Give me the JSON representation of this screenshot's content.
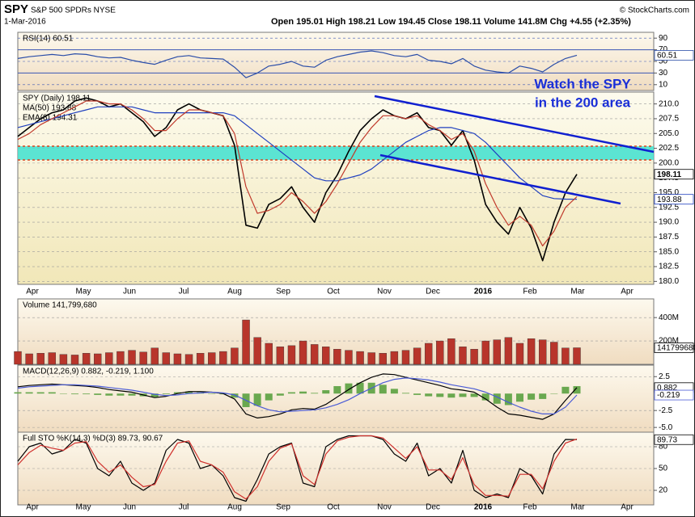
{
  "header": {
    "symbol": "SPY",
    "name": "S&P 500 SPDRs NYSE",
    "date": "1-Mar-2016",
    "quote": "Open 195.01 High 198.21 Low 194.45 Close 198.11 Volume 141.8M Chg +4.55 (+2.35%)",
    "credit": "© StockCharts.com"
  },
  "months": [
    "Apr",
    "May",
    "Jun",
    "Jul",
    "Aug",
    "Sep",
    "Oct",
    "Nov",
    "Dec",
    "2016",
    "Feb",
    "Mar",
    "Apr"
  ],
  "annotation": [
    "Watch the SPY",
    "in the 200 area"
  ],
  "chart_data": [
    {
      "type": "line",
      "title": "RSI(14) 60.51",
      "color": "#2a4da8",
      "ylim": [
        0,
        100
      ],
      "yticks": [
        10,
        30,
        50,
        70,
        90
      ],
      "grid": true,
      "values": [
        55,
        58,
        60,
        62,
        60,
        63,
        62,
        58,
        56,
        57,
        52,
        48,
        45,
        52,
        58,
        60,
        56,
        55,
        54,
        40,
        22,
        30,
        42,
        45,
        50,
        42,
        40,
        52,
        58,
        62,
        66,
        68,
        65,
        60,
        58,
        62,
        52,
        50,
        46,
        55,
        42,
        35,
        32,
        30,
        42,
        38,
        32,
        45,
        55,
        60.51
      ]
    },
    {
      "type": "line",
      "ylim": [
        179.5,
        212
      ],
      "grid": true,
      "yticks": [
        {
          "value": 180,
          "label": "180.0"
        },
        182.5,
        {
          "value": 185,
          "label": "185.0"
        },
        187.5,
        {
          "value": 190,
          "label": "190.0"
        },
        192.5,
        {
          "value": 195,
          "label": "195.0"
        },
        197.5,
        {
          "value": 200,
          "label": "200.0"
        },
        202.5,
        {
          "value": 205,
          "label": "205.0"
        },
        207.5,
        {
          "value": 210,
          "label": "210.0"
        }
      ],
      "series": [
        {
          "name": "SPY (Daily) 198.11",
          "color": "#000000",
          "values": [
            204.5,
            206,
            207.5,
            208.5,
            209,
            210.5,
            211,
            210.5,
            209.5,
            210,
            208.5,
            207,
            204.5,
            206,
            209,
            210,
            209,
            208.5,
            208,
            203,
            189.5,
            189,
            193,
            194,
            196,
            192.5,
            190,
            195,
            198,
            202,
            205.5,
            207.5,
            209,
            208,
            207.5,
            208.5,
            206,
            205.5,
            203,
            205.5,
            200.5,
            193,
            190,
            188,
            192.5,
            189,
            183.5,
            190,
            195,
            198.11
          ]
        },
        {
          "name": "MA(50) 193.88",
          "color": "#1f3fbf",
          "values": [
            206,
            206.5,
            207,
            207.5,
            208,
            208.5,
            209,
            209.5,
            209.5,
            209.5,
            209.5,
            209,
            208.5,
            208.5,
            208.5,
            208.5,
            208.5,
            208.5,
            208.5,
            208,
            206.5,
            205,
            203.5,
            202,
            200.5,
            199,
            197.5,
            197,
            197,
            197.5,
            198,
            199,
            200.5,
            202,
            203.5,
            204.5,
            205.5,
            206,
            206,
            205.5,
            205,
            203.5,
            201.5,
            199.5,
            197.5,
            196,
            194.5,
            194,
            193.9,
            193.88
          ]
        },
        {
          "name": "EMA(8) 194.31",
          "color": "#c0392b",
          "values": [
            204,
            205,
            206.5,
            207.5,
            208.5,
            209.5,
            210.5,
            210.5,
            210,
            210,
            209,
            207.5,
            205.5,
            205.5,
            207.5,
            209,
            209,
            208.5,
            208,
            205,
            196,
            191.5,
            192,
            193,
            195,
            193.5,
            191.5,
            193.5,
            196.5,
            200,
            203.5,
            206,
            208,
            208,
            207.5,
            208,
            206.5,
            205.5,
            204,
            205,
            202,
            196.5,
            192.5,
            189.5,
            191,
            189.5,
            186,
            188.5,
            192.5,
            194.31
          ]
        }
      ]
    },
    {
      "type": "bar",
      "title": "Volume 141,799,680",
      "color": "#b8352b",
      "ylim": [
        0,
        560000000
      ],
      "grid": true,
      "yticks": [
        {
          "value": 200000000,
          "label": "200M"
        },
        {
          "value": 400000000,
          "label": "400M"
        }
      ],
      "values": [
        110000000,
        90000000,
        95000000,
        100000000,
        85000000,
        80000000,
        95000000,
        90000000,
        100000000,
        110000000,
        120000000,
        105000000,
        140000000,
        100000000,
        90000000,
        85000000,
        95000000,
        100000000,
        110000000,
        140000000,
        380000000,
        230000000,
        180000000,
        150000000,
        160000000,
        200000000,
        170000000,
        150000000,
        130000000,
        120000000,
        110000000,
        100000000,
        95000000,
        110000000,
        120000000,
        140000000,
        180000000,
        200000000,
        220000000,
        150000000,
        130000000,
        200000000,
        210000000,
        230000000,
        180000000,
        220000000,
        210000000,
        190000000,
        140000000,
        141799680
      ]
    },
    {
      "type": "line",
      "title": "MACD(12,26,9) 0.882, -0.219, 1.100",
      "ylim": [
        -5.7,
        4.2
      ],
      "grid": true,
      "yticks": [
        2.5,
        -2.5,
        {
          "value": -5,
          "label": "-5.0"
        }
      ],
      "series": [
        {
          "type": "bar",
          "color": "#6aa84f",
          "values": [
            0.2,
            0.2,
            0.2,
            0.2,
            0,
            -0.1,
            -0.1,
            -0.2,
            -0.3,
            -0.3,
            -0.3,
            -0.4,
            -0.5,
            -0.1,
            0.2,
            0.3,
            0.2,
            0,
            -0.1,
            -0.6,
            -2,
            -1.8,
            -1,
            -0.3,
            0.2,
            0.3,
            0.1,
            0.5,
            1.1,
            1.5,
            1.6,
            1.6,
            1.3,
            0.7,
            0.1,
            -0.2,
            -0.4,
            -0.5,
            -0.6,
            -0.5,
            -0.5,
            -1,
            -1.5,
            -1.7,
            -1.2,
            -0.9,
            -0.8,
            0,
            1,
            1.1
          ]
        },
        {
          "color": "#000000",
          "values": [
            1,
            1.2,
            1.3,
            1.4,
            1.3,
            1.2,
            1.1,
            0.9,
            0.6,
            0.4,
            0.2,
            -0.2,
            -0.6,
            -0.4,
            0,
            0.3,
            0.3,
            0.2,
            0,
            -0.8,
            -3,
            -3.6,
            -3.4,
            -3,
            -2.4,
            -2.2,
            -2.3,
            -1.6,
            -0.5,
            0.6,
            1.6,
            2.4,
            2.9,
            2.8,
            2.4,
            2,
            1.6,
            1.2,
            0.7,
            0.5,
            0.2,
            -0.8,
            -2,
            -3,
            -3.2,
            -3.5,
            -3.8,
            -3,
            -1,
            0.882
          ]
        },
        {
          "color": "#4a5bd6",
          "values": [
            0.8,
            1,
            1.1,
            1.2,
            1.3,
            1.3,
            1.2,
            1.1,
            0.9,
            0.7,
            0.5,
            0.2,
            -0.1,
            -0.3,
            -0.2,
            0,
            0.1,
            0.2,
            0.1,
            -0.2,
            -1,
            -1.8,
            -2.4,
            -2.7,
            -2.6,
            -2.5,
            -2.4,
            -2.1,
            -1.6,
            -0.9,
            0,
            0.8,
            1.6,
            2.1,
            2.3,
            2.2,
            2,
            1.7,
            1.3,
            1,
            0.7,
            0.2,
            -0.5,
            -1.3,
            -2,
            -2.6,
            -3,
            -3,
            -2,
            -0.219
          ]
        }
      ]
    },
    {
      "type": "line",
      "title": "Full STO %K(14,3) %D(3) 89.73, 90.67",
      "ylim": [
        0,
        100
      ],
      "grid": true,
      "yticks": [
        20,
        50,
        80
      ],
      "series": [
        {
          "color": "#000000",
          "values": [
            60,
            80,
            85,
            70,
            75,
            90,
            85,
            50,
            40,
            60,
            30,
            20,
            30,
            75,
            90,
            85,
            50,
            55,
            40,
            10,
            5,
            35,
            70,
            80,
            85,
            30,
            25,
            80,
            90,
            95,
            95,
            95,
            90,
            70,
            60,
            85,
            40,
            50,
            30,
            75,
            20,
            10,
            15,
            10,
            50,
            40,
            15,
            70,
            90,
            89.73
          ]
        },
        {
          "color": "#d0312d",
          "values": [
            55,
            72,
            82,
            78,
            75,
            85,
            87,
            60,
            45,
            55,
            38,
            25,
            28,
            60,
            85,
            88,
            60,
            55,
            45,
            18,
            8,
            25,
            60,
            78,
            84,
            40,
            28,
            70,
            88,
            93,
            95,
            95,
            92,
            78,
            64,
            80,
            48,
            48,
            35,
            65,
            28,
            13,
            13,
            12,
            42,
            42,
            22,
            60,
            85,
            90.67
          ]
        }
      ]
    }
  ]
}
